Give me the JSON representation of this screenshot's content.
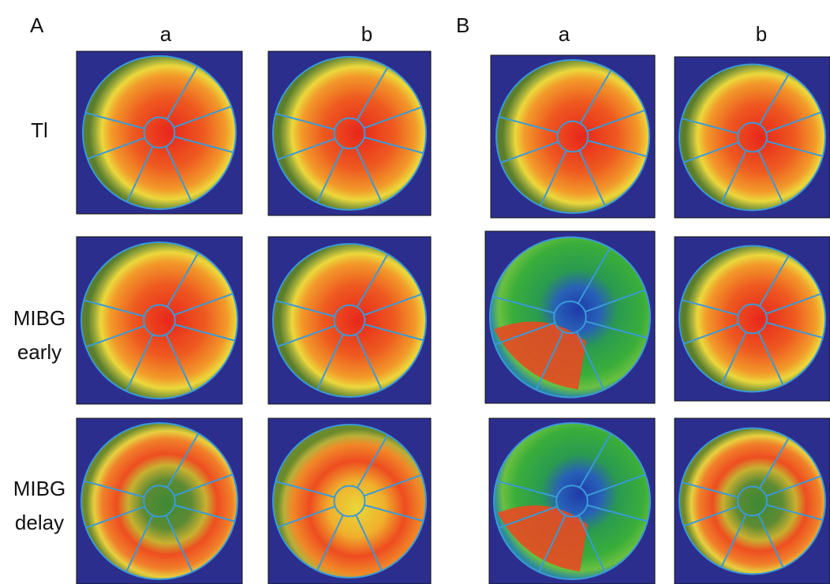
{
  "panels": [
    {
      "label": "A",
      "columns": [
        "a",
        "b"
      ]
    },
    {
      "label": "B",
      "columns": [
        "a",
        "b"
      ]
    }
  ],
  "rows": [
    [
      "Tl"
    ],
    [
      "MIBG",
      "early"
    ],
    [
      "MIBG",
      "delay"
    ]
  ]
}
